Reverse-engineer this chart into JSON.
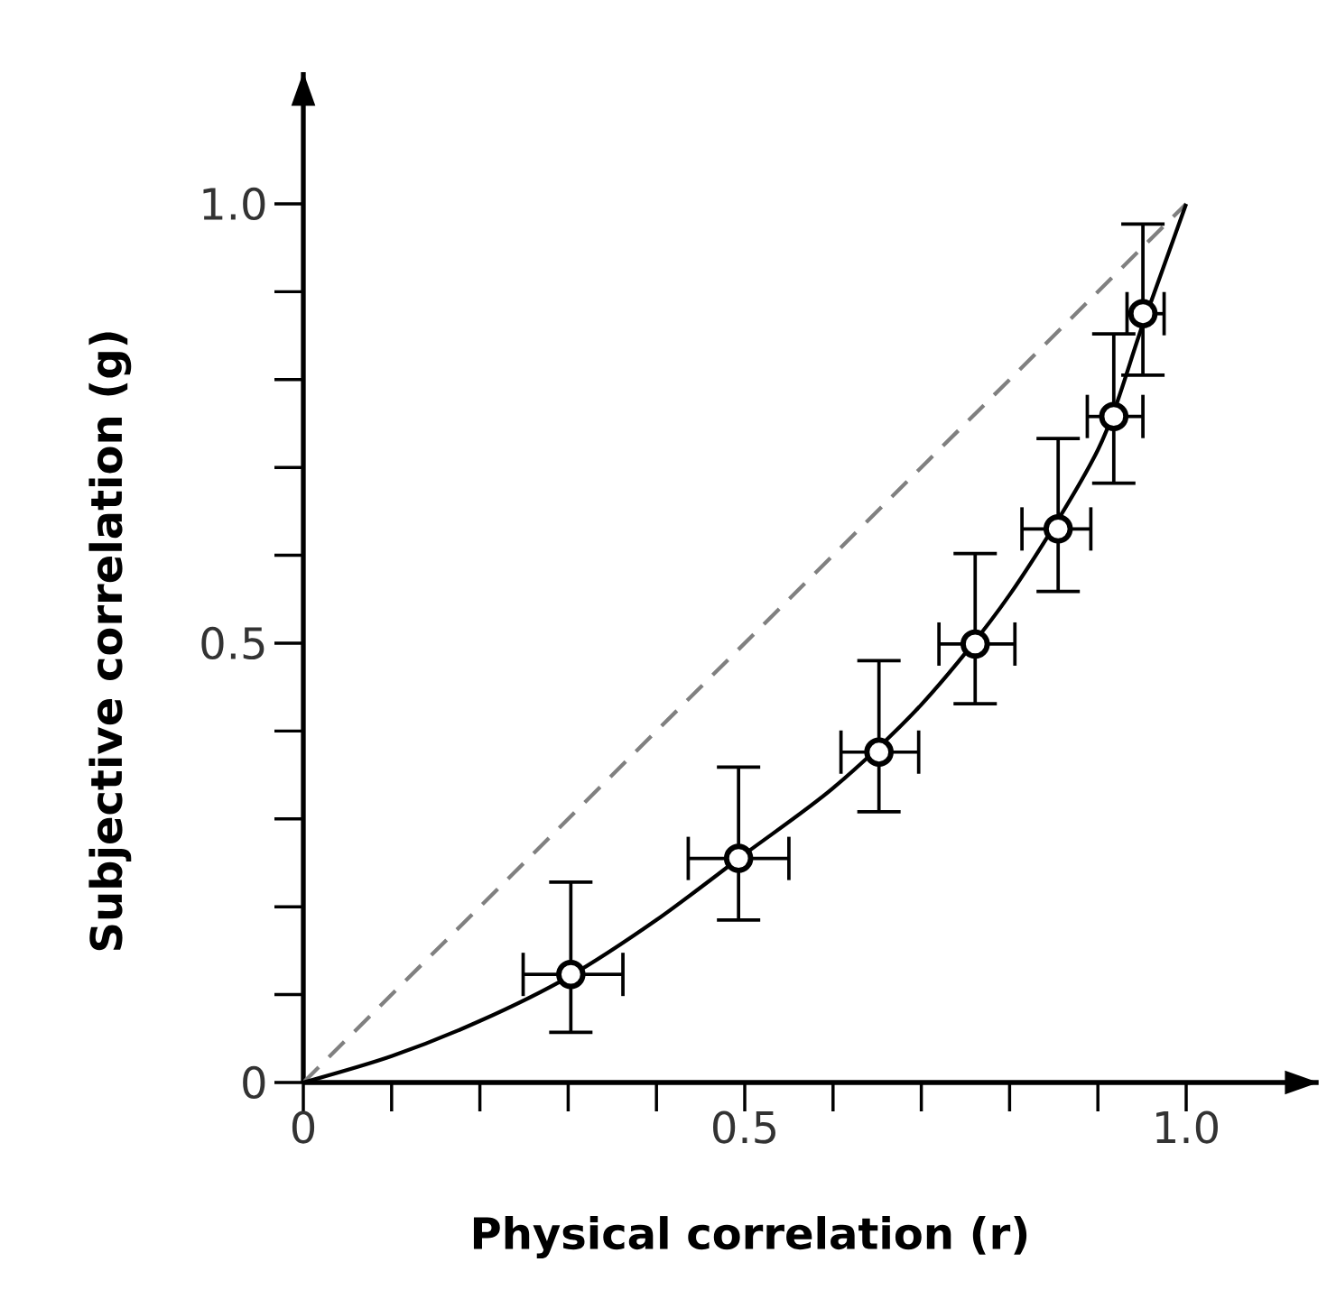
{
  "chart_data": {
    "type": "scatter",
    "xlabel": "Physical correlation (r)",
    "ylabel": "Subjective correlation (g)",
    "xlim": [
      0,
      1.15
    ],
    "ylim": [
      0,
      1.15
    ],
    "xticks": [
      0,
      {
        "value": 0.1,
        "label": null
      },
      {
        "value": 0.2,
        "label": null
      },
      {
        "value": 0.3,
        "label": null
      },
      {
        "value": 0.4,
        "label": null
      },
      0.5,
      {
        "value": 0.6,
        "label": null
      },
      {
        "value": 0.7,
        "label": null
      },
      {
        "value": 0.8,
        "label": null
      },
      {
        "value": 0.9,
        "label": null
      },
      {
        "value": 1,
        "label": "1.0"
      }
    ],
    "yticks": [
      0,
      {
        "value": 0.1,
        "label": null
      },
      {
        "value": 0.2,
        "label": null
      },
      {
        "value": 0.3,
        "label": null
      },
      {
        "value": 0.4,
        "label": null
      },
      0.5,
      {
        "value": 0.6,
        "label": null
      },
      {
        "value": 0.7,
        "label": null
      },
      {
        "value": 0.8,
        "label": null
      },
      {
        "value": 0.9,
        "label": null
      },
      {
        "value": 1,
        "label": "1.0"
      }
    ],
    "grid": false,
    "series": [
      {
        "type": "line",
        "color": "#808080",
        "line_style": "dashed",
        "marker": "none",
        "x": [
          0,
          1
        ],
        "values": [
          0,
          1
        ]
      },
      {
        "type": "line",
        "color": "#000000",
        "line_style": "solid",
        "marker": "none",
        "x": [
          0,
          0.1,
          0.2,
          0.3,
          0.4,
          0.5,
          0.6,
          0.7,
          0.8,
          0.9,
          0.95,
          1
        ],
        "values": [
          0,
          0.03,
          0.07,
          0.12,
          0.185,
          0.26,
          0.335,
          0.43,
          0.555,
          0.72,
          0.86,
          1
        ]
      },
      {
        "color": "#000000",
        "marker": "circle",
        "x": [
          0.303,
          0.493,
          0.652,
          0.761,
          0.855,
          0.918,
          0.951
        ],
        "values": [
          0.123,
          0.255,
          0.376,
          0.499,
          0.63,
          0.758,
          0.875
        ],
        "errors": [
          [
            0.057,
            0.228
          ],
          [
            0.185,
            0.359
          ],
          [
            0.308,
            0.48
          ],
          [
            0.431,
            0.602
          ],
          [
            0.559,
            0.733
          ],
          [
            0.682,
            0.852
          ],
          [
            0.805,
            0.977
          ]
        ],
        "xerrors": [
          [
            0.249,
            0.362
          ],
          [
            0.436,
            0.55
          ],
          [
            0.609,
            0.697
          ],
          [
            0.72,
            0.806
          ],
          [
            0.814,
            0.892
          ],
          [
            0.888,
            0.951
          ],
          [
            0.933,
            0.975
          ]
        ]
      }
    ]
  }
}
